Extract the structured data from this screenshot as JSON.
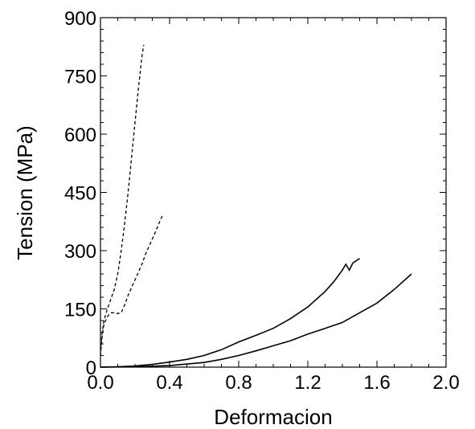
{
  "chart_data": {
    "type": "line",
    "title": "",
    "xlabel": "Deformacion",
    "ylabel": "Tension (MPa)",
    "xlim": [
      0.0,
      2.0
    ],
    "ylim": [
      0,
      900
    ],
    "x_ticks": [
      "0.0",
      "0.4",
      "0.8",
      "1.2",
      "1.6",
      "2.0"
    ],
    "y_ticks": [
      "0",
      "150",
      "300",
      "450",
      "600",
      "750",
      "900"
    ],
    "grid": false,
    "legend": "none",
    "series": [
      {
        "style": "dashed",
        "x": [
          0.0,
          0.01,
          0.02,
          0.04,
          0.06,
          0.08,
          0.1,
          0.12,
          0.14,
          0.16,
          0.18,
          0.2,
          0.22,
          0.24,
          0.25
        ],
        "y": [
          40,
          90,
          120,
          150,
          175,
          200,
          240,
          300,
          370,
          450,
          540,
          630,
          720,
          800,
          830
        ]
      },
      {
        "style": "dashed",
        "x": [
          0.0,
          0.01,
          0.02,
          0.04,
          0.06,
          0.08,
          0.1,
          0.12,
          0.14,
          0.16,
          0.18,
          0.2,
          0.22,
          0.24,
          0.26,
          0.28,
          0.3,
          0.32,
          0.34,
          0.36
        ],
        "y": [
          30,
          80,
          110,
          130,
          140,
          140,
          138,
          140,
          160,
          185,
          205,
          225,
          245,
          265,
          290,
          310,
          330,
          350,
          372,
          392
        ]
      },
      {
        "style": "solid",
        "x": [
          0.0,
          0.1,
          0.2,
          0.3,
          0.4,
          0.5,
          0.6,
          0.7,
          0.8,
          0.9,
          1.0,
          1.1,
          1.2,
          1.3,
          1.35,
          1.4,
          1.42,
          1.44,
          1.46,
          1.5
        ],
        "y": [
          0,
          1,
          3,
          7,
          13,
          20,
          30,
          45,
          65,
          82,
          100,
          125,
          155,
          195,
          220,
          250,
          265,
          250,
          268,
          280
        ]
      },
      {
        "style": "solid",
        "x": [
          0.0,
          0.2,
          0.4,
          0.6,
          0.7,
          0.8,
          0.9,
          1.0,
          1.1,
          1.2,
          1.3,
          1.4,
          1.5,
          1.6,
          1.7,
          1.8
        ],
        "y": [
          0,
          1,
          4,
          12,
          20,
          30,
          42,
          55,
          68,
          85,
          100,
          115,
          140,
          165,
          200,
          240
        ]
      }
    ]
  }
}
